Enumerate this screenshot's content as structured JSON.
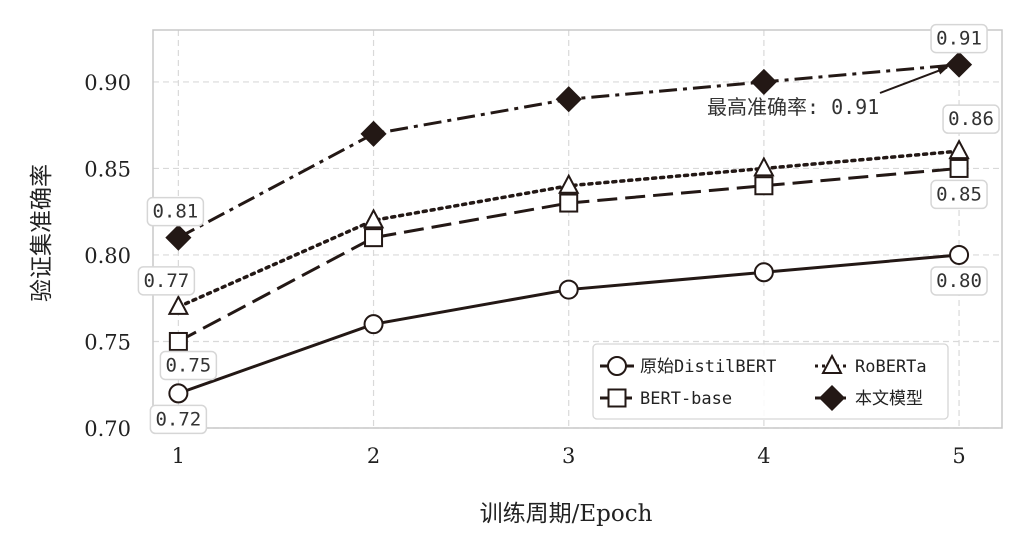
{
  "chart_data": {
    "type": "line",
    "title": "",
    "xlabel": "训练周期/Epoch",
    "ylabel": "验证集准确率",
    "x": [
      1,
      2,
      3,
      4,
      5
    ],
    "xlim": [
      0.87,
      5.22
    ],
    "ylim": [
      0.7,
      0.93
    ],
    "x_ticks": [
      "1",
      "2",
      "3",
      "4",
      "5"
    ],
    "y_ticks": [
      "0.70",
      "0.75",
      "0.80",
      "0.85",
      "0.90"
    ],
    "grid": true,
    "legend_position": "lower-right",
    "series": [
      {
        "name": "原始DistilBERT",
        "values": [
          0.72,
          0.76,
          0.78,
          0.79,
          0.8
        ],
        "marker": "circle",
        "dash": "solid",
        "color": "#231815"
      },
      {
        "name": "BERT-base",
        "values": [
          0.75,
          0.81,
          0.83,
          0.84,
          0.85
        ],
        "marker": "square",
        "dash": "dashed",
        "color": "#231815"
      },
      {
        "name": "RoBERTa",
        "values": [
          0.77,
          0.82,
          0.84,
          0.85,
          0.86
        ],
        "marker": "triangle",
        "dash": "dotted",
        "color": "#231815"
      },
      {
        "name": "本文模型",
        "values": [
          0.81,
          0.87,
          0.89,
          0.9,
          0.91
        ],
        "marker": "diamond",
        "dash": "dashdot",
        "color": "#231815"
      }
    ],
    "data_labels": [
      {
        "x": 1,
        "y": 0.72,
        "text": "0.72"
      },
      {
        "x": 1,
        "y": 0.75,
        "text": "0.75"
      },
      {
        "x": 1,
        "y": 0.77,
        "text": "0.77"
      },
      {
        "x": 1,
        "y": 0.81,
        "text": "0.81"
      },
      {
        "x": 5,
        "y": 0.8,
        "text": "0.80"
      },
      {
        "x": 5,
        "y": 0.85,
        "text": "0.85"
      },
      {
        "x": 5,
        "y": 0.86,
        "text": "0.86"
      },
      {
        "x": 5,
        "y": 0.91,
        "text": "0.91"
      }
    ],
    "annotation": {
      "text": "最高准确率: 0.91",
      "target_x": 5,
      "target_y": 0.91
    }
  }
}
